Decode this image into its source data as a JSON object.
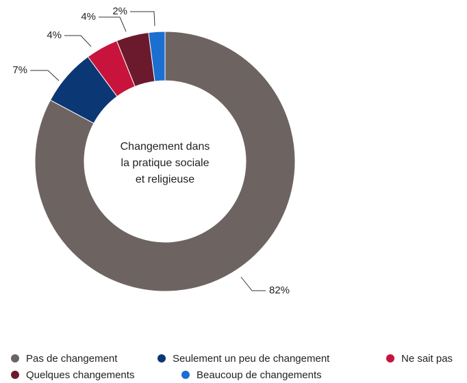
{
  "chart_data": {
    "type": "donut",
    "center_label": [
      "Changement dans",
      "la pratique sociale",
      "et religieuse"
    ],
    "categories": [
      "Pas de changement",
      "Seulement un peu de changement",
      "Ne sait pas",
      "Quelques changements",
      "Beaucoup de changements"
    ],
    "values": [
      82,
      7,
      4,
      4,
      2
    ],
    "value_labels": [
      "82%",
      "7%",
      "4%",
      "4%",
      "2%"
    ],
    "colors": [
      "#6d6462",
      "#0b3775",
      "#c8143c",
      "#6b1a2e",
      "#1a6fd0"
    ],
    "legend": "bottom"
  }
}
